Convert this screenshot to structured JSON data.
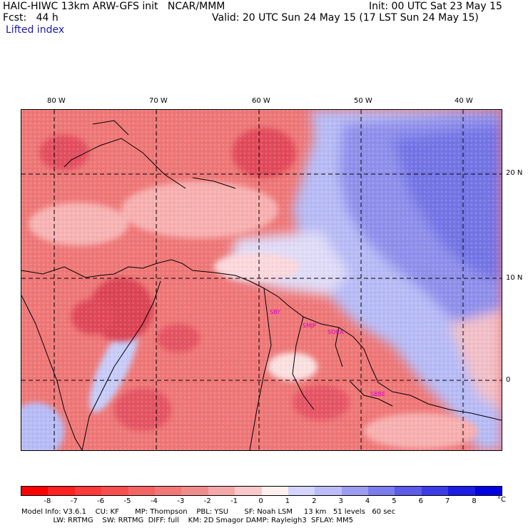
{
  "header": {
    "title_left": "HAIC-HIWC 13km ARW-GFS init   NCAR/MMM",
    "init": "Init: 00 UTC Sat 23 May 15",
    "fcst": "Fcst:   44 h",
    "valid": "Valid: 20 UTC Sun 24 May 15 (17 LST Sun 24 May 15)",
    "field": "Lifted index"
  },
  "map": {
    "longitude_labels": [
      "80 W",
      "70 W",
      "60 W",
      "50 W",
      "40 W"
    ],
    "latitude_labels": [
      "20 N",
      "10 N",
      "0"
    ],
    "stations": [
      "SBY",
      "SMJP",
      "SOCA",
      "SBBE"
    ],
    "colors": {
      "deep_red": "#e04858",
      "red": "#ee7070",
      "light_red": "#f7a8a8",
      "pale": "#fdd8d8",
      "light_blue": "#b8bcf6",
      "blue": "#8c8cee",
      "deep_blue": "#6a6ae6"
    }
  },
  "colorbar": {
    "labels": [
      "-8",
      "-7",
      "-6",
      "-5",
      "-4",
      "-3",
      "-2",
      "-1",
      "0",
      "1",
      "2",
      "3",
      "4",
      "5",
      "6",
      "7",
      "8"
    ],
    "unit": "°C",
    "colors": [
      "#ff0000",
      "#ff2020",
      "#ff3a3a",
      "#fa4e4e",
      "#f56464",
      "#f27878",
      "#f08c8c",
      "#f5a8a8",
      "#fac8c8",
      "#fff0f0",
      "#d4d4fc",
      "#bcbcf8",
      "#9c9cf2",
      "#7c7cee",
      "#5c5ce8",
      "#3c3ce6",
      "#1c1ce4",
      "#0000e0"
    ]
  },
  "footer": {
    "line1": "Model Info: V3.6.1    CU: KF       MP: Thompson    PBL: YSU       SF: Noah LSM     13 km   51 levels   60 sec",
    "line2": "              LW: RRTMG    SW: RRTMG  DIFF: full    KM: 2D Smagor DAMP: Rayleigh3  SFLAY: MM5"
  }
}
